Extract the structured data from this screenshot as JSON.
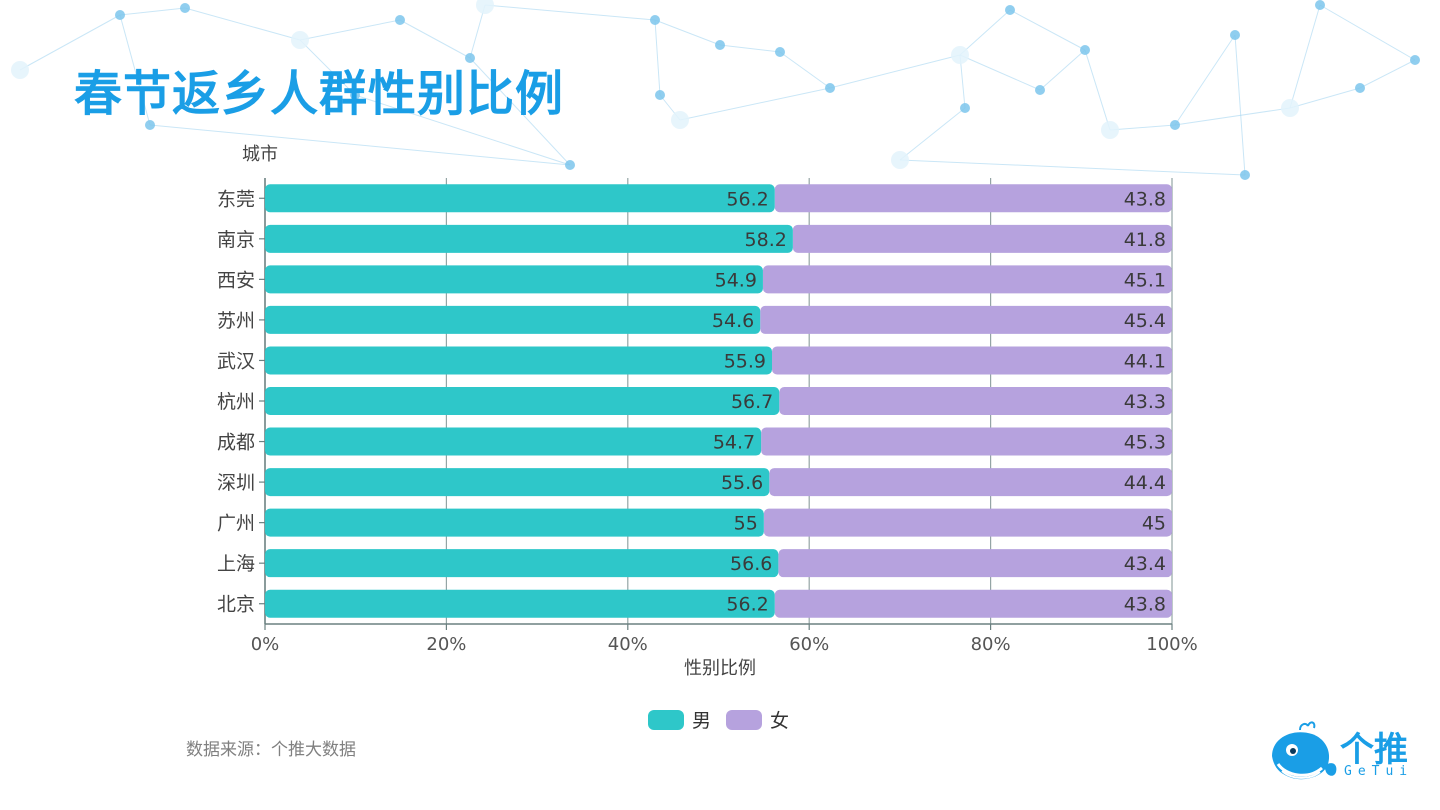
{
  "page": {
    "title": "春节返乡人群性别比例",
    "source": "数据来源：个推大数据"
  },
  "brand": {
    "logo_text": "个推",
    "logo_sub": "GeTui",
    "color": "#1a9ee6"
  },
  "chart_data": {
    "type": "bar",
    "orientation": "horizontal",
    "stacked": "percent",
    "ylabel": "城市",
    "xlabel": "性别比例",
    "categories": [
      "东莞",
      "南京",
      "西安",
      "苏州",
      "武汉",
      "杭州",
      "成都",
      "深圳",
      "广州",
      "上海",
      "北京"
    ],
    "series": [
      {
        "name": "男",
        "color": "#2ec7c9",
        "values": [
          56.2,
          58.2,
          54.9,
          54.6,
          55.9,
          56.7,
          54.7,
          55.6,
          55,
          56.6,
          56.2
        ]
      },
      {
        "name": "女",
        "color": "#b6a2de",
        "values": [
          43.8,
          41.8,
          45.1,
          45.4,
          44.1,
          43.3,
          45.3,
          44.4,
          45,
          43.4,
          43.8
        ]
      }
    ],
    "xlim": [
      0,
      100
    ],
    "xticks": [
      "0%",
      "20%",
      "40%",
      "60%",
      "80%",
      "100%"
    ],
    "grid": true,
    "legend": "bottom-center"
  }
}
